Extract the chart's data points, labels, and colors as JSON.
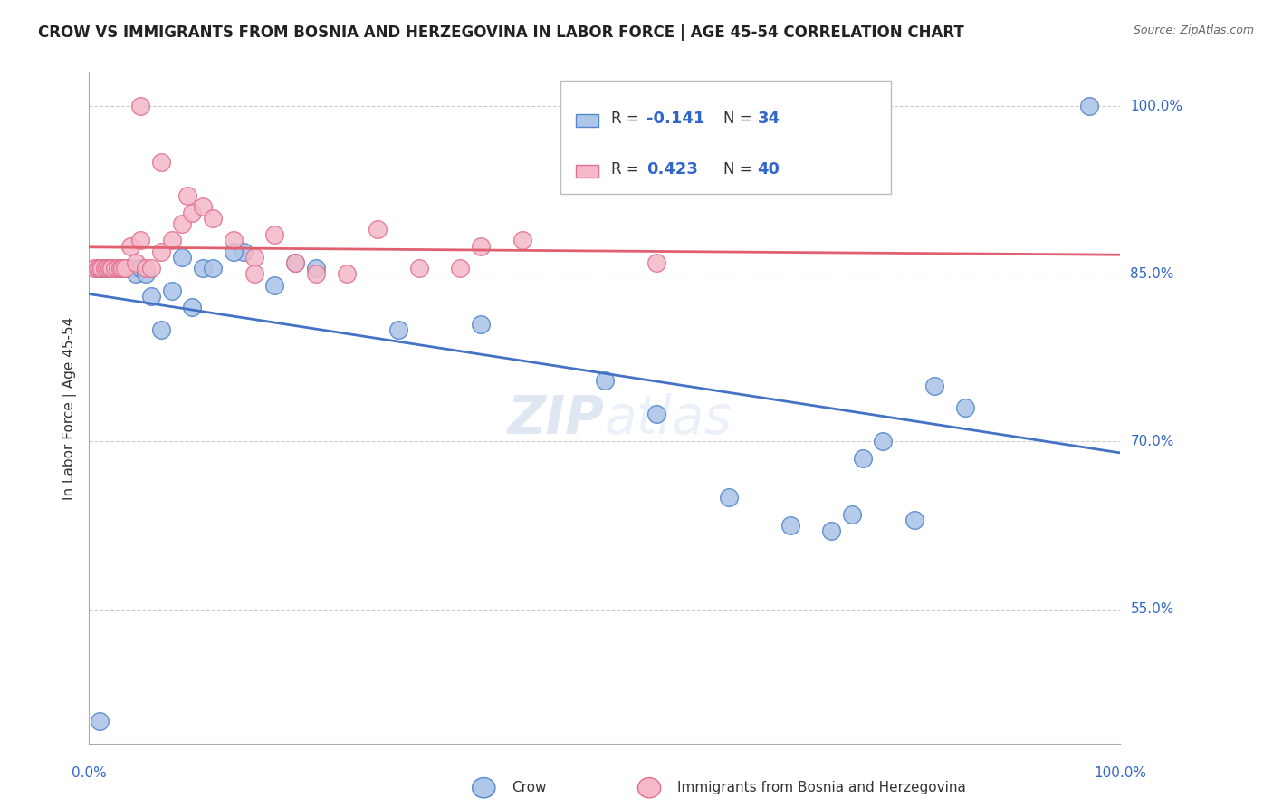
{
  "title": "CROW VS IMMIGRANTS FROM BOSNIA AND HERZEGOVINA IN LABOR FORCE | AGE 45-54 CORRELATION CHART",
  "source": "Source: ZipAtlas.com",
  "ylabel": "In Labor Force | Age 45-54",
  "watermark_zip": "ZIP",
  "watermark_atlas": "atlas",
  "legend_r1": "R = -0.141",
  "legend_n1": "N = 34",
  "legend_r2": "R = 0.423",
  "legend_n2": "N = 40",
  "ytick_vals": [
    55.0,
    70.0,
    85.0,
    100.0
  ],
  "blue_color": "#aec6e8",
  "pink_color": "#f4b8c8",
  "blue_edge_color": "#5588cc",
  "pink_edge_color": "#e07090",
  "blue_line_color": "#4472c4",
  "pink_line_color": "#e06070",
  "crow_x": [
    1.0,
    2.0,
    3.0,
    3.5,
    4.0,
    4.5,
    5.0,
    5.5,
    6.0,
    7.0,
    8.0,
    9.0,
    10.0,
    11.0,
    12.0,
    15.0,
    18.0,
    22.0,
    30.0,
    38.0,
    50.0,
    55.0,
    68.0,
    72.0,
    75.0,
    77.0,
    80.0,
    82.0,
    85.0,
    97.0,
    14.0,
    20.0,
    62.0,
    74.0
  ],
  "crow_y": [
    45.0,
    85.5,
    85.5,
    85.5,
    85.5,
    85.0,
    85.5,
    85.0,
    83.0,
    80.0,
    83.5,
    86.5,
    82.0,
    85.5,
    85.5,
    87.0,
    84.0,
    85.5,
    80.0,
    80.5,
    75.5,
    72.5,
    62.5,
    62.0,
    68.5,
    70.0,
    63.0,
    75.0,
    73.0,
    100.0,
    87.0,
    86.0,
    65.0,
    63.5
  ],
  "bosnia_x": [
    0.5,
    0.8,
    1.0,
    1.2,
    1.5,
    1.7,
    2.0,
    2.2,
    2.5,
    2.8,
    3.0,
    3.2,
    3.5,
    4.0,
    4.5,
    5.0,
    5.5,
    6.0,
    7.0,
    8.0,
    9.0,
    10.0,
    11.0,
    12.0,
    14.0,
    16.0,
    18.0,
    20.0,
    22.0,
    25.0,
    28.0,
    32.0,
    36.0,
    38.0,
    42.0,
    55.0,
    5.0,
    7.0,
    9.5,
    16.0
  ],
  "bosnia_y": [
    85.5,
    85.5,
    85.5,
    85.5,
    85.5,
    85.5,
    85.5,
    85.5,
    85.5,
    85.5,
    85.5,
    85.5,
    85.5,
    87.5,
    86.0,
    88.0,
    85.5,
    85.5,
    87.0,
    88.0,
    89.5,
    90.5,
    91.0,
    90.0,
    88.0,
    86.5,
    88.5,
    86.0,
    85.0,
    85.0,
    89.0,
    85.5,
    85.5,
    87.5,
    88.0,
    86.0,
    100.0,
    95.0,
    92.0,
    85.0
  ],
  "xlim": [
    0,
    100
  ],
  "ylim": [
    43,
    103
  ]
}
